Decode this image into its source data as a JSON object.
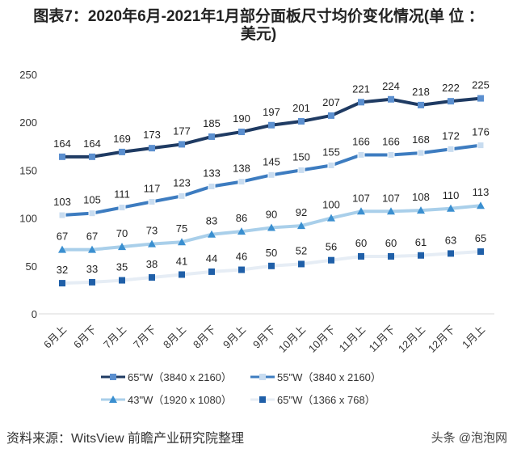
{
  "title_line1": "图表7：2020年6月-2021年1月部分面板尺寸均价变化情况(单 位 ：",
  "title_line2": "美元)",
  "source": "资料来源：WitsView 前瞻产业研究院整理",
  "credit": "头条 @泡泡网",
  "chart_data": {
    "type": "line",
    "title": "图表7：2020年6月-2021年1月部分面板尺寸均价变化情况(单位：美元)",
    "xlabel": "",
    "ylabel": "",
    "ylim": [
      0,
      250
    ],
    "yticks": [
      "0",
      "50",
      "100",
      "150",
      "200",
      "250"
    ],
    "grid": false,
    "legend": "bottom",
    "categories": [
      "6月上",
      "6月下",
      "7月上",
      "7月下",
      "8月上",
      "8月下",
      "9月上",
      "9月下",
      "10月上",
      "10月下",
      "11月上",
      "11月下",
      "12月上",
      "12月下",
      "1月上"
    ],
    "series": [
      {
        "name": "65\"W（3840 x 2160）",
        "line": "#1f3b63",
        "marker": "#5b8fcf",
        "shape": "square",
        "values": [
          164,
          164,
          169,
          173,
          177,
          185,
          190,
          197,
          201,
          207,
          221,
          224,
          218,
          222,
          225
        ]
      },
      {
        "name": "55\"W（3840 x 2160）",
        "line": "#3d7cc0",
        "marker": "#c8dcf0",
        "shape": "square",
        "values": [
          103,
          105,
          111,
          117,
          123,
          133,
          138,
          145,
          150,
          155,
          166,
          166,
          168,
          172,
          176
        ]
      },
      {
        "name": "43\"W（1920 x 1080）",
        "line": "#a9cfea",
        "marker": "#3a8fd0",
        "shape": "triangle",
        "values": [
          67,
          67,
          70,
          73,
          75,
          83,
          86,
          90,
          92,
          100,
          107,
          107,
          108,
          110,
          113
        ]
      },
      {
        "name": "65\"W（1366 x 768）",
        "line": "#e6edf5",
        "marker": "#1f5fa8",
        "shape": "square",
        "values": [
          32,
          33,
          35,
          38,
          41,
          44,
          46,
          50,
          52,
          56,
          60,
          60,
          61,
          63,
          65
        ]
      }
    ]
  }
}
